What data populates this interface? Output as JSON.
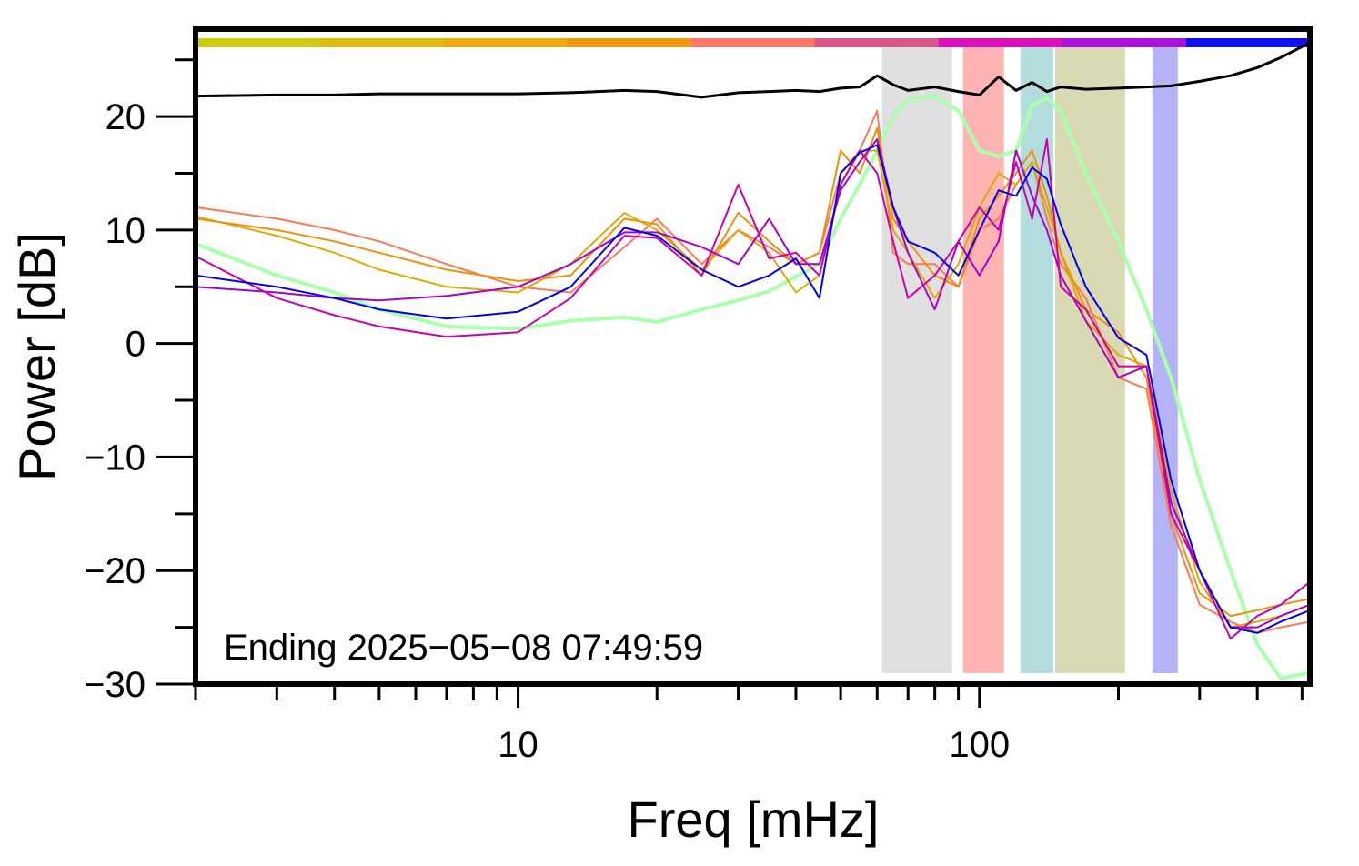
{
  "chart_data": {
    "type": "line",
    "xlabel": "Freq [mHz]",
    "ylabel": "Power [dB]",
    "annotation": "Ending 2025−05−08 07:49:59",
    "log_x": true,
    "xlim": [
      2,
      520
    ],
    "ylim": [
      -30,
      27.7
    ],
    "xticks": [
      10,
      100
    ],
    "xminor_ticks": [
      2,
      3,
      4,
      5,
      6,
      7,
      8,
      9,
      20,
      30,
      40,
      50,
      60,
      70,
      80,
      90,
      200,
      300,
      400,
      500
    ],
    "yticks": [
      {
        "value": -30,
        "label": "−30"
      },
      {
        "value": -20,
        "label": "−20"
      },
      {
        "value": -10,
        "label": "−10"
      },
      0,
      10,
      20
    ],
    "yminor_ticks": [
      -25,
      -15,
      -5,
      5,
      15,
      25
    ],
    "top_bar_colors": [
      "#cccc11",
      "#ddbb11",
      "#eeaa11",
      "#ee9911",
      "#ff7766",
      "#dd5588",
      "#dd11bb",
      "#aa11dd",
      "#1111ee"
    ],
    "bands": [
      {
        "from": 61.5,
        "to": 87.3,
        "color": "#e0e0e0"
      },
      {
        "from": 92.1,
        "to": 113,
        "color": "#ffb3b3"
      },
      {
        "from": 122.7,
        "to": 144.5,
        "color": "#b3dcdc"
      },
      {
        "from": 145.8,
        "to": 206.8,
        "color": "#d9d9b3"
      },
      {
        "from": 237,
        "to": 269,
        "color": "#b3b3f5"
      }
    ],
    "x": [
      2,
      3,
      4,
      5,
      7,
      10,
      13,
      17,
      20,
      25,
      30,
      35,
      40,
      45,
      50,
      55,
      60,
      65,
      70,
      80,
      90,
      100,
      110,
      120,
      130,
      140,
      150,
      170,
      200,
      230,
      260,
      300,
      350,
      400,
      450,
      520
    ],
    "series": [
      {
        "color": "#aaffaa",
        "width": 4,
        "values": [
          8.8,
          6,
          4.5,
          3,
          1.5,
          1.3,
          2,
          2.3,
          1.9,
          3,
          3.8,
          4.6,
          5.9,
          7,
          11,
          14,
          17,
          20,
          21.5,
          21.8,
          20.5,
          17,
          16.5,
          17,
          21,
          21.6,
          20.5,
          15,
          9,
          3,
          -3,
          -12,
          -20,
          -26.5,
          -29.5,
          -29
        ]
      },
      {
        "color": "#000000",
        "width": 3,
        "values": [
          21.8,
          21.9,
          21.9,
          22,
          22,
          22,
          22.1,
          22.3,
          22.2,
          21.7,
          22.1,
          22.2,
          22.3,
          22.2,
          22.5,
          22.6,
          23.6,
          22.8,
          22.3,
          22.6,
          22.2,
          21.9,
          23.5,
          22.3,
          23,
          22.2,
          22.6,
          22.4,
          22.5,
          22.6,
          22.7,
          23.1,
          23.6,
          24.3,
          25.2,
          26.5
        ]
      },
      {
        "color": "#ff7755",
        "width": 2,
        "values": [
          12,
          11,
          10,
          9,
          7,
          5,
          4.5,
          8.5,
          11,
          7,
          10,
          8.5,
          7,
          8,
          15,
          17,
          20.5,
          8,
          7,
          7,
          5,
          10,
          11,
          14,
          16,
          11,
          7,
          4,
          -3,
          -4,
          -16,
          -23,
          -24.5,
          -25.5,
          -25,
          -24.5
        ]
      },
      {
        "color": "#ddaa00",
        "width": 2,
        "values": [
          11.2,
          9.5,
          8,
          6.5,
          5,
          4.5,
          7,
          11.5,
          10,
          6.5,
          10,
          8,
          4.5,
          6,
          14,
          17,
          17,
          10,
          8,
          4,
          7,
          12,
          15,
          14,
          16,
          12,
          8,
          2,
          -1,
          -2,
          -13,
          -21,
          -25,
          -24.5,
          -24,
          -23
        ]
      },
      {
        "color": "#f0900a",
        "width": 2,
        "values": [
          11,
          10,
          9,
          8,
          6.5,
          5.5,
          6,
          11,
          10.5,
          6,
          11.5,
          9,
          7,
          8,
          17,
          15,
          19,
          11,
          9,
          6,
          5,
          11,
          13,
          15,
          17,
          13,
          8,
          3,
          1,
          -3,
          -15,
          -22,
          -24,
          -23.5,
          -23,
          -22.5
        ]
      },
      {
        "color": "#aa00cc",
        "width": 2,
        "values": [
          5,
          4.5,
          4,
          3.8,
          4.2,
          5,
          7,
          9.8,
          9.8,
          8.5,
          7,
          11,
          7,
          7,
          13.5,
          16,
          18,
          12,
          8,
          3,
          9,
          6,
          9,
          17,
          13,
          10,
          6,
          2,
          -3,
          -2,
          -14,
          -20,
          -25,
          -25,
          -24,
          -23
        ]
      },
      {
        "color": "#cc00aa",
        "width": 2,
        "values": [
          7.7,
          4,
          2.5,
          1.5,
          0.6,
          1,
          4,
          9.5,
          9.3,
          6,
          14,
          7.5,
          8,
          6,
          14,
          17,
          15,
          9,
          4,
          6,
          9,
          12,
          10,
          16,
          11,
          18,
          5,
          3,
          -2,
          -2,
          -15,
          -20,
          -26,
          -24,
          -23,
          -21
        ]
      },
      {
        "color": "#0000ee",
        "width": 2,
        "values": [
          6,
          5,
          4,
          3,
          2.2,
          2.8,
          5,
          10.2,
          9.5,
          6.5,
          5,
          6,
          7.5,
          4,
          15,
          16.8,
          17.5,
          12,
          9,
          8,
          6,
          10,
          13.5,
          13,
          15.5,
          14.5,
          10.5,
          5,
          0.5,
          -1,
          -12,
          -20,
          -25,
          -25.5,
          -24.5,
          -23.5
        ]
      }
    ]
  }
}
